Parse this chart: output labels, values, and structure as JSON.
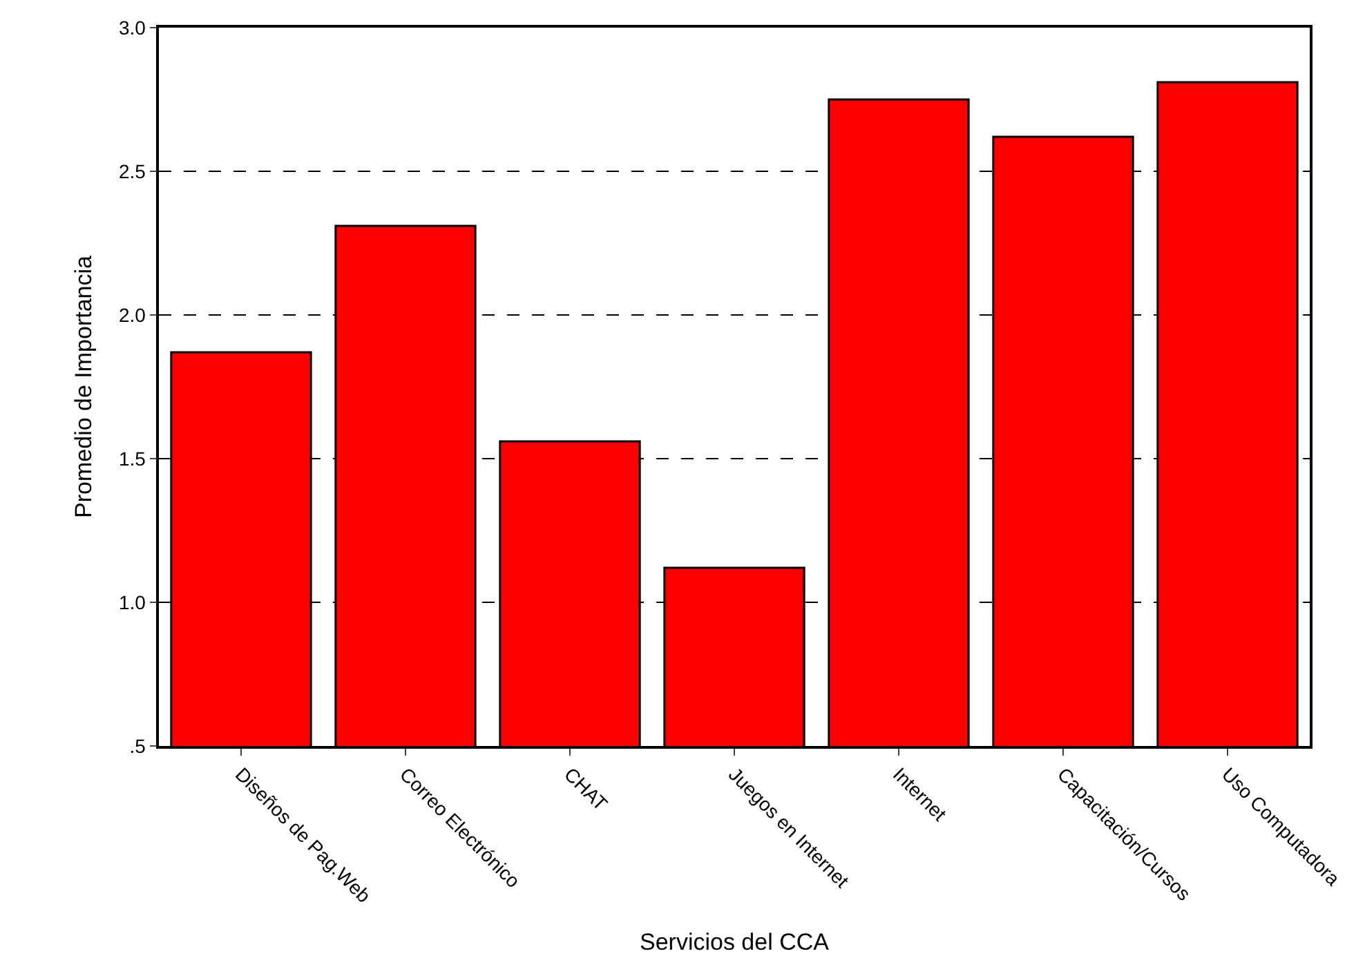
{
  "chart_data": {
    "type": "bar",
    "xlabel": "Servicios del CCA",
    "ylabel": "Promedio de Importancia",
    "categories": [
      "Diseños de Pag.Web",
      "Correo Electrónico",
      "CHAT",
      "Juegos en Internet",
      "Internet",
      "Capacitación/Cursos",
      "Uso Computadora"
    ],
    "values": [
      1.87,
      2.31,
      1.56,
      1.12,
      2.75,
      2.62,
      2.81
    ],
    "color": "#ff0000",
    "ylim": [
      0.5,
      3.0
    ],
    "yticks": [
      {
        "value": 0.5,
        "label": ".5"
      },
      {
        "value": 1.0,
        "label": "1.0"
      },
      {
        "value": 1.5,
        "label": "1.5"
      },
      {
        "value": 2.0,
        "label": "2.0"
      },
      {
        "value": 2.5,
        "label": "2.5"
      },
      {
        "value": 3.0,
        "label": "3.0"
      }
    ],
    "grid": "y"
  }
}
